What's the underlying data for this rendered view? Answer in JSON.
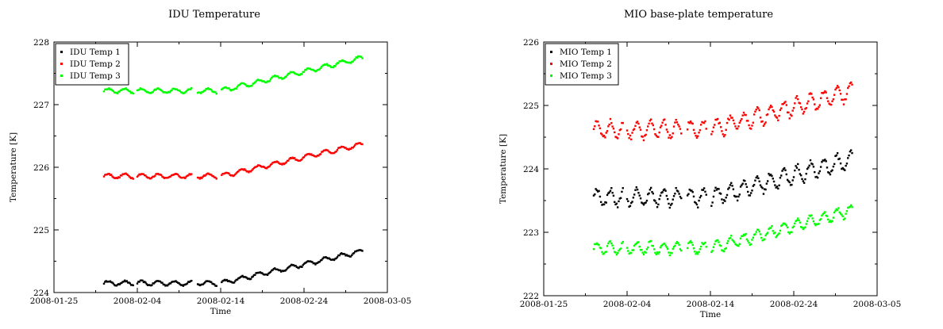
{
  "chart_data": [
    {
      "type": "scatter",
      "title": "IDU Temperature",
      "xlabel": "Time",
      "ylabel": "Temperature [K]",
      "x_ticks": [
        "2008-01-25",
        "2008-02-04",
        "2008-02-14",
        "2008-02-24",
        "2008-03-05"
      ],
      "xlim": [
        "2008-01-25",
        "2008-03-05"
      ],
      "ylim": [
        224,
        228
      ],
      "y_ticks": [
        224,
        225,
        226,
        227,
        228
      ],
      "grid": false,
      "legend": "top-left",
      "series": [
        {
          "name": "IDU Temp 1",
          "color": "#000000",
          "base": 224.15,
          "slope": 0.03,
          "amp": 0.035,
          "period": 2
        },
        {
          "name": "IDU Temp 2",
          "color": "#ff0000",
          "base": 225.86,
          "slope": 0.03,
          "amp": 0.035,
          "period": 2
        },
        {
          "name": "IDU Temp 3",
          "color": "#00ff00",
          "base": 227.22,
          "slope": 0.031,
          "amp": 0.035,
          "period": 2
        }
      ],
      "x_start": "2008-01-31",
      "x_end": "2008-03-02",
      "trend_start": "2008-02-14"
    },
    {
      "type": "scatter",
      "title": "MIO base-plate temperature",
      "xlabel": "Time",
      "ylabel": "Temperature [K]",
      "x_ticks": [
        "2008-01-25",
        "2008-02-04",
        "2008-02-14",
        "2008-02-24",
        "2008-03-05"
      ],
      "xlim": [
        "2008-01-25",
        "2008-03-05"
      ],
      "ylim": [
        222,
        226
      ],
      "y_ticks": [
        222,
        223,
        224,
        225,
        226
      ],
      "grid": false,
      "legend": "top-left",
      "series": [
        {
          "name": "MIO Temp 1",
          "color": "#000000",
          "base": 223.55,
          "slope": 0.035,
          "amp": 0.13,
          "period": 1.6
        },
        {
          "name": "MIO Temp 2",
          "color": "#ff0000",
          "base": 224.62,
          "slope": 0.035,
          "amp": 0.13,
          "period": 1.6
        },
        {
          "name": "MIO Temp 3",
          "color": "#00ff00",
          "base": 222.75,
          "slope": 0.035,
          "amp": 0.09,
          "period": 1.6
        }
      ],
      "x_start": "2008-01-31",
      "x_end": "2008-03-02",
      "trend_start": "2008-02-14"
    }
  ]
}
